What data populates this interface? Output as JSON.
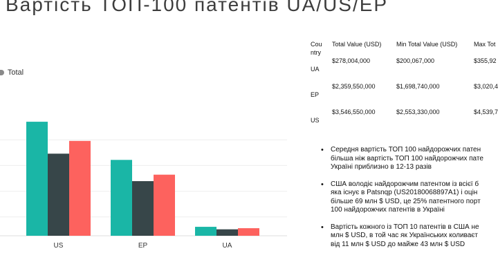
{
  "title": "Вартість ТОП-100 патентів UA/US/EP",
  "legend": {
    "label": "Total",
    "color": "#8a8a8a"
  },
  "colors": {
    "teal": "#1ab6a6",
    "dark": "#374649",
    "red": "#fd625e"
  },
  "chart_data": {
    "type": "bar",
    "categories": [
      "US",
      "EP",
      "UA"
    ],
    "series": [
      {
        "values": [
          3546550000,
          2359550000,
          278004000
        ],
        "color": "#1ab6a6"
      },
      {
        "values": [
          2553330000,
          1698740000,
          200067000
        ],
        "color": "#374649"
      },
      {
        "values": [
          2950000000,
          1900000000,
          235000000
        ],
        "color": "#fd625e"
      }
    ],
    "ylim": [
      0,
      4000000000
    ],
    "legend": [
      "Total"
    ],
    "grid": true,
    "xlabel": "",
    "ylabel": ""
  },
  "table": {
    "headers": [
      "Cou\nntry",
      "Total Value (USD)",
      "Min Total Value (USD)",
      "Max Tot"
    ],
    "rows": [
      [
        "UA",
        "$278,004,000",
        "$200,067,000",
        "$355,92"
      ],
      [
        "EP",
        "$2,359,550,000",
        "$1,698,740,000",
        "$3,020,4"
      ],
      [
        "US",
        "$3,546,550,000",
        "$2,553,330,000",
        "$4,539,7"
      ]
    ]
  },
  "bullets": [
    [
      "Середня вартість ТОП 100 найдорожчих патен",
      "більша ніж вартість ТОП 100 найдорожчих пате",
      "Україні приблизно в 12-13 разів"
    ],
    [
      "США володіє найдорожчим патентом  із всієї б",
      "яка існує в Patsnqp (US20180068897A1) і оцін",
      "більше 69 млн $ USD, це 25% патентного порт",
      "100 найдорожчих патентів в Україні"
    ],
    [
      "Вартість кожного із ТОП 10 патентів в США не",
      "млн $ USD, в той час як Українських коливаєт",
      "від 11 млн $ USD до майже 43 млн $ USD"
    ]
  ]
}
